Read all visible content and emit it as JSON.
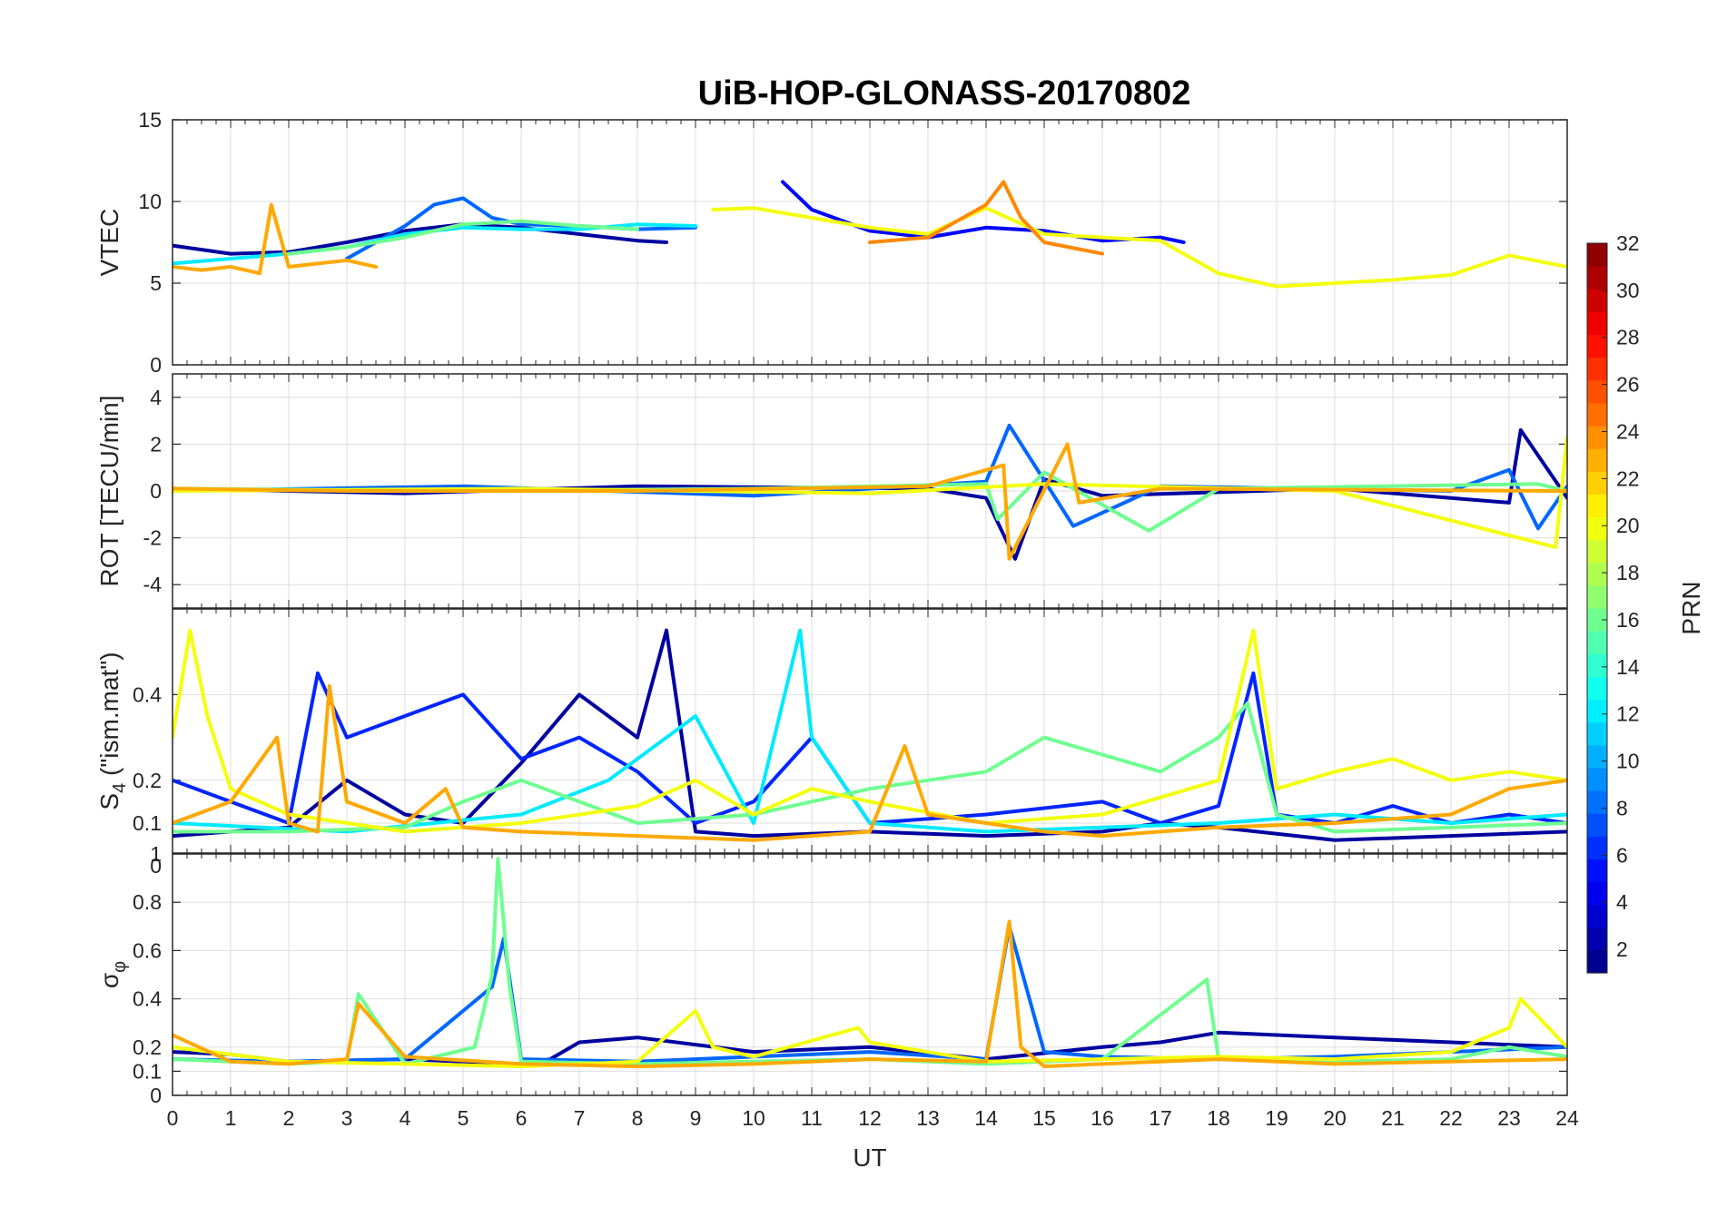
{
  "chart_data": {
    "type": "line",
    "title": "UiB-HOP-GLONASS-20170802",
    "xlabel": "UT",
    "xlim": [
      0,
      24
    ],
    "x_ticks": [
      "0",
      "1",
      "2",
      "3",
      "4",
      "5",
      "6",
      "7",
      "8",
      "9",
      "10",
      "11",
      "12",
      "13",
      "14",
      "15",
      "16",
      "17",
      "18",
      "19",
      "20",
      "21",
      "22",
      "23",
      "24"
    ],
    "grid": true,
    "panels": [
      {
        "ylabel": "VTEC",
        "ylim": [
          0,
          15
        ],
        "y_ticks": [
          "0",
          "5",
          "10",
          "15"
        ],
        "series": [
          {
            "prn": 2,
            "x": [
              0,
              1,
              2,
              3,
              4,
              5,
              6,
              7,
              8,
              8.5
            ],
            "y": [
              7.3,
              6.8,
              6.9,
              7.5,
              8.2,
              8.6,
              8.4,
              8.0,
              7.6,
              7.5
            ]
          },
          {
            "prn": 5,
            "x": [
              10.5,
              11,
              12,
              13,
              14,
              15,
              16,
              17,
              17.4
            ],
            "y": [
              11.2,
              9.5,
              8.2,
              7.8,
              8.4,
              8.2,
              7.6,
              7.8,
              7.5
            ]
          },
          {
            "prn": 8,
            "x": [
              3,
              4,
              4.5,
              5,
              5.5,
              6,
              7,
              8,
              9
            ],
            "y": [
              6.5,
              8.5,
              9.8,
              10.2,
              9.0,
              8.6,
              8.5,
              8.3,
              8.4
            ]
          },
          {
            "prn": 12,
            "x": [
              0,
              1,
              2,
              3,
              4,
              5,
              6,
              7,
              8,
              9
            ],
            "y": [
              6.2,
              6.5,
              6.8,
              7.2,
              8.0,
              8.4,
              8.3,
              8.3,
              8.6,
              8.5
            ]
          },
          {
            "prn": 16,
            "x": [
              2,
              3,
              4,
              5,
              6,
              7,
              8
            ],
            "y": [
              6.8,
              7.2,
              7.8,
              8.6,
              8.8,
              8.5,
              8.3
            ]
          },
          {
            "prn": 20,
            "x": [
              9.3,
              10,
              11,
              12,
              13,
              14,
              15,
              16,
              17,
              18,
              19,
              20,
              21,
              22,
              23,
              24
            ],
            "y": [
              9.5,
              9.6,
              9.0,
              8.4,
              8.0,
              9.6,
              8.0,
              7.8,
              7.6,
              5.6,
              4.8,
              5.0,
              5.2,
              5.5,
              6.7,
              6.0
            ]
          },
          {
            "prn": 23,
            "x": [
              0,
              0.5,
              1,
              1.5,
              1.7,
              2,
              2.5,
              3,
              3.5
            ],
            "y": [
              6.0,
              5.8,
              6.0,
              5.6,
              9.8,
              6.0,
              6.2,
              6.4,
              6.0
            ]
          },
          {
            "prn": 24,
            "x": [
              12,
              13,
              14,
              14.3,
              14.6,
              15,
              16
            ],
            "y": [
              7.5,
              7.8,
              9.8,
              11.2,
              9.0,
              7.5,
              6.8
            ]
          }
        ]
      },
      {
        "ylabel": "ROT [TECU/min]",
        "ylim": [
          -5,
          5
        ],
        "y_ticks": [
          "-4",
          "-2",
          "0",
          "2",
          "4"
        ],
        "series": [
          {
            "prn": 2,
            "x": [
              0,
              4,
              8,
              13,
              14,
              14.5,
              15,
              16,
              20,
              23,
              23.2,
              24
            ],
            "y": [
              0.1,
              -0.1,
              0.2,
              0.1,
              -0.3,
              -2.9,
              0.5,
              -0.2,
              0.1,
              -0.5,
              2.6,
              -0.3
            ]
          },
          {
            "prn": 8,
            "x": [
              0,
              5,
              10,
              14,
              14.4,
              15.5,
              17,
              22,
              23,
              23.5,
              24
            ],
            "y": [
              0.0,
              0.2,
              -0.2,
              0.4,
              2.8,
              -1.5,
              0.2,
              0.0,
              0.9,
              -1.6,
              0.2
            ]
          },
          {
            "prn": 16,
            "x": [
              0,
              5,
              10,
              14,
              14.2,
              15,
              16.8,
              18,
              23.5,
              24
            ],
            "y": [
              0.1,
              0.0,
              0.1,
              0.3,
              -1.2,
              0.8,
              -1.7,
              0.1,
              0.3,
              0.0
            ]
          },
          {
            "prn": 20,
            "x": [
              0,
              6,
              12,
              15,
              20,
              23.8,
              24
            ],
            "y": [
              0.0,
              0.1,
              -0.1,
              0.3,
              0.0,
              -2.4,
              2.3
            ]
          },
          {
            "prn": 23,
            "x": [
              0,
              3,
              8,
              13,
              14.3,
              14.4,
              15.4,
              15.6,
              17,
              24
            ],
            "y": [
              0.1,
              0.0,
              0.0,
              0.2,
              1.1,
              -2.9,
              2.0,
              -0.5,
              0.1,
              0.0
            ]
          }
        ]
      },
      {
        "ylabel_main": "S",
        "ylabel_sub": "4",
        "ylabel_rest": " (\"ism.mat\")",
        "ylim": [
          0.03,
          0.6
        ],
        "y_ticks": [
          "0",
          "0.1",
          "0.2",
          "0.4"
        ],
        "series": [
          {
            "prn": 2,
            "x": [
              0,
              1,
              2,
              3,
              4,
              5,
              6,
              7,
              8,
              8.5,
              9,
              10,
              12,
              14,
              16,
              17,
              18,
              20,
              22,
              24
            ],
            "y": [
              0.07,
              0.08,
              0.09,
              0.2,
              0.12,
              0.1,
              0.24,
              0.4,
              0.3,
              0.55,
              0.08,
              0.07,
              0.08,
              0.07,
              0.08,
              0.1,
              0.09,
              0.06,
              0.07,
              0.08
            ]
          },
          {
            "prn": 6,
            "x": [
              0,
              2,
              2.5,
              3,
              4,
              5,
              6,
              7,
              8,
              9,
              10,
              11,
              12,
              14,
              16,
              17,
              18,
              18.6,
              19,
              20,
              21,
              22,
              23,
              24
            ],
            "y": [
              0.2,
              0.1,
              0.45,
              0.3,
              0.35,
              0.4,
              0.25,
              0.3,
              0.22,
              0.1,
              0.15,
              0.3,
              0.1,
              0.12,
              0.15,
              0.1,
              0.14,
              0.45,
              0.12,
              0.1,
              0.14,
              0.1,
              0.12,
              0.1
            ]
          },
          {
            "prn": 12,
            "x": [
              0,
              3,
              6,
              7.5,
              9,
              10,
              10.8,
              11,
              12,
              14,
              16,
              18,
              20,
              22,
              24
            ],
            "y": [
              0.1,
              0.08,
              0.12,
              0.2,
              0.35,
              0.1,
              0.55,
              0.3,
              0.1,
              0.08,
              0.09,
              0.1,
              0.12,
              0.1,
              0.12
            ]
          },
          {
            "prn": 16,
            "x": [
              0,
              2,
              4,
              5,
              6,
              8,
              10,
              12,
              13,
              14,
              15,
              16,
              17,
              18,
              18.5,
              19,
              20,
              22,
              24
            ],
            "y": [
              0.08,
              0.08,
              0.09,
              0.15,
              0.2,
              0.1,
              0.12,
              0.18,
              0.2,
              0.22,
              0.3,
              0.26,
              0.22,
              0.3,
              0.38,
              0.12,
              0.08,
              0.09,
              0.1
            ]
          },
          {
            "prn": 20,
            "x": [
              0,
              0.3,
              0.6,
              1,
              2,
              4,
              6,
              8,
              9,
              10,
              11,
              12,
              14,
              16,
              18,
              18.6,
              19,
              20,
              21,
              22,
              23,
              24
            ],
            "y": [
              0.3,
              0.55,
              0.35,
              0.18,
              0.12,
              0.08,
              0.1,
              0.14,
              0.2,
              0.12,
              0.18,
              0.15,
              0.1,
              0.12,
              0.2,
              0.55,
              0.18,
              0.22,
              0.25,
              0.2,
              0.22,
              0.2
            ]
          },
          {
            "prn": 23,
            "x": [
              0,
              1,
              1.8,
              2,
              2.5,
              2.7,
              3,
              4,
              4.7,
              5,
              6,
              8,
              10,
              12,
              12.6,
              13,
              14,
              15,
              16,
              17,
              18,
              20,
              22,
              23,
              24
            ],
            "y": [
              0.1,
              0.15,
              0.3,
              0.1,
              0.08,
              0.42,
              0.15,
              0.1,
              0.18,
              0.09,
              0.08,
              0.07,
              0.06,
              0.08,
              0.28,
              0.12,
              0.1,
              0.08,
              0.07,
              0.08,
              0.09,
              0.1,
              0.12,
              0.18,
              0.2
            ]
          }
        ]
      },
      {
        "ylabel_main": "σ",
        "ylabel_sub": "φ",
        "ylim": [
          0,
          1
        ],
        "y_ticks": [
          "0",
          "0.1",
          "0.2",
          "0.4",
          "0.6",
          "0.8",
          "1"
        ],
        "series": [
          {
            "prn": 2,
            "x": [
              0,
              1,
              2,
              4,
              6,
              6.5,
              7,
              8,
              10,
              12,
              14,
              16,
              17,
              17.5,
              18,
              20,
              22,
              24
            ],
            "y": [
              0.18,
              0.17,
              0.14,
              0.15,
              0.13,
              0.15,
              0.22,
              0.24,
              0.18,
              0.2,
              0.15,
              0.2,
              0.22,
              0.24,
              0.26,
              0.24,
              0.22,
              0.2
            ]
          },
          {
            "prn": 8,
            "x": [
              0,
              2,
              4,
              5.5,
              5.7,
              6,
              8,
              10,
              12,
              14,
              14.4,
              15,
              16,
              18,
              20,
              22,
              24
            ],
            "y": [
              0.15,
              0.14,
              0.15,
              0.45,
              0.65,
              0.15,
              0.14,
              0.16,
              0.18,
              0.15,
              0.7,
              0.18,
              0.16,
              0.15,
              0.16,
              0.18,
              0.2
            ]
          },
          {
            "prn": 16,
            "x": [
              0,
              2,
              3,
              3.2,
              4,
              5.2,
              5.5,
              5.6,
              5.8,
              6,
              8,
              10,
              12,
              14,
              16,
              17.8,
              18,
              20,
              22,
              23,
              24
            ],
            "y": [
              0.15,
              0.13,
              0.14,
              0.42,
              0.13,
              0.2,
              0.5,
              0.98,
              0.45,
              0.14,
              0.13,
              0.14,
              0.15,
              0.13,
              0.15,
              0.48,
              0.15,
              0.14,
              0.15,
              0.2,
              0.16
            ]
          },
          {
            "prn": 20,
            "x": [
              0,
              2,
              4,
              6,
              8,
              9,
              9.3,
              10,
              11.8,
              12,
              14,
              16,
              18,
              20,
              22,
              23,
              23.2,
              24
            ],
            "y": [
              0.2,
              0.14,
              0.13,
              0.12,
              0.14,
              0.35,
              0.2,
              0.16,
              0.28,
              0.22,
              0.14,
              0.15,
              0.16,
              0.15,
              0.18,
              0.28,
              0.4,
              0.2
            ]
          },
          {
            "prn": 23,
            "x": [
              0,
              1,
              2,
              3,
              3.2,
              4,
              6,
              8,
              10,
              12,
              14,
              14.4,
              14.6,
              15,
              16,
              18,
              20,
              22,
              24
            ],
            "y": [
              0.25,
              0.14,
              0.13,
              0.15,
              0.38,
              0.16,
              0.13,
              0.12,
              0.13,
              0.15,
              0.14,
              0.72,
              0.2,
              0.12,
              0.13,
              0.15,
              0.13,
              0.14,
              0.15
            ]
          }
        ]
      }
    ],
    "colorbar": {
      "label": "PRN",
      "clim": [
        1,
        32
      ],
      "ticks": [
        "2",
        "4",
        "6",
        "8",
        "10",
        "12",
        "14",
        "16",
        "18",
        "20",
        "22",
        "24",
        "26",
        "28",
        "30",
        "32"
      ],
      "colormap": "jet"
    }
  }
}
